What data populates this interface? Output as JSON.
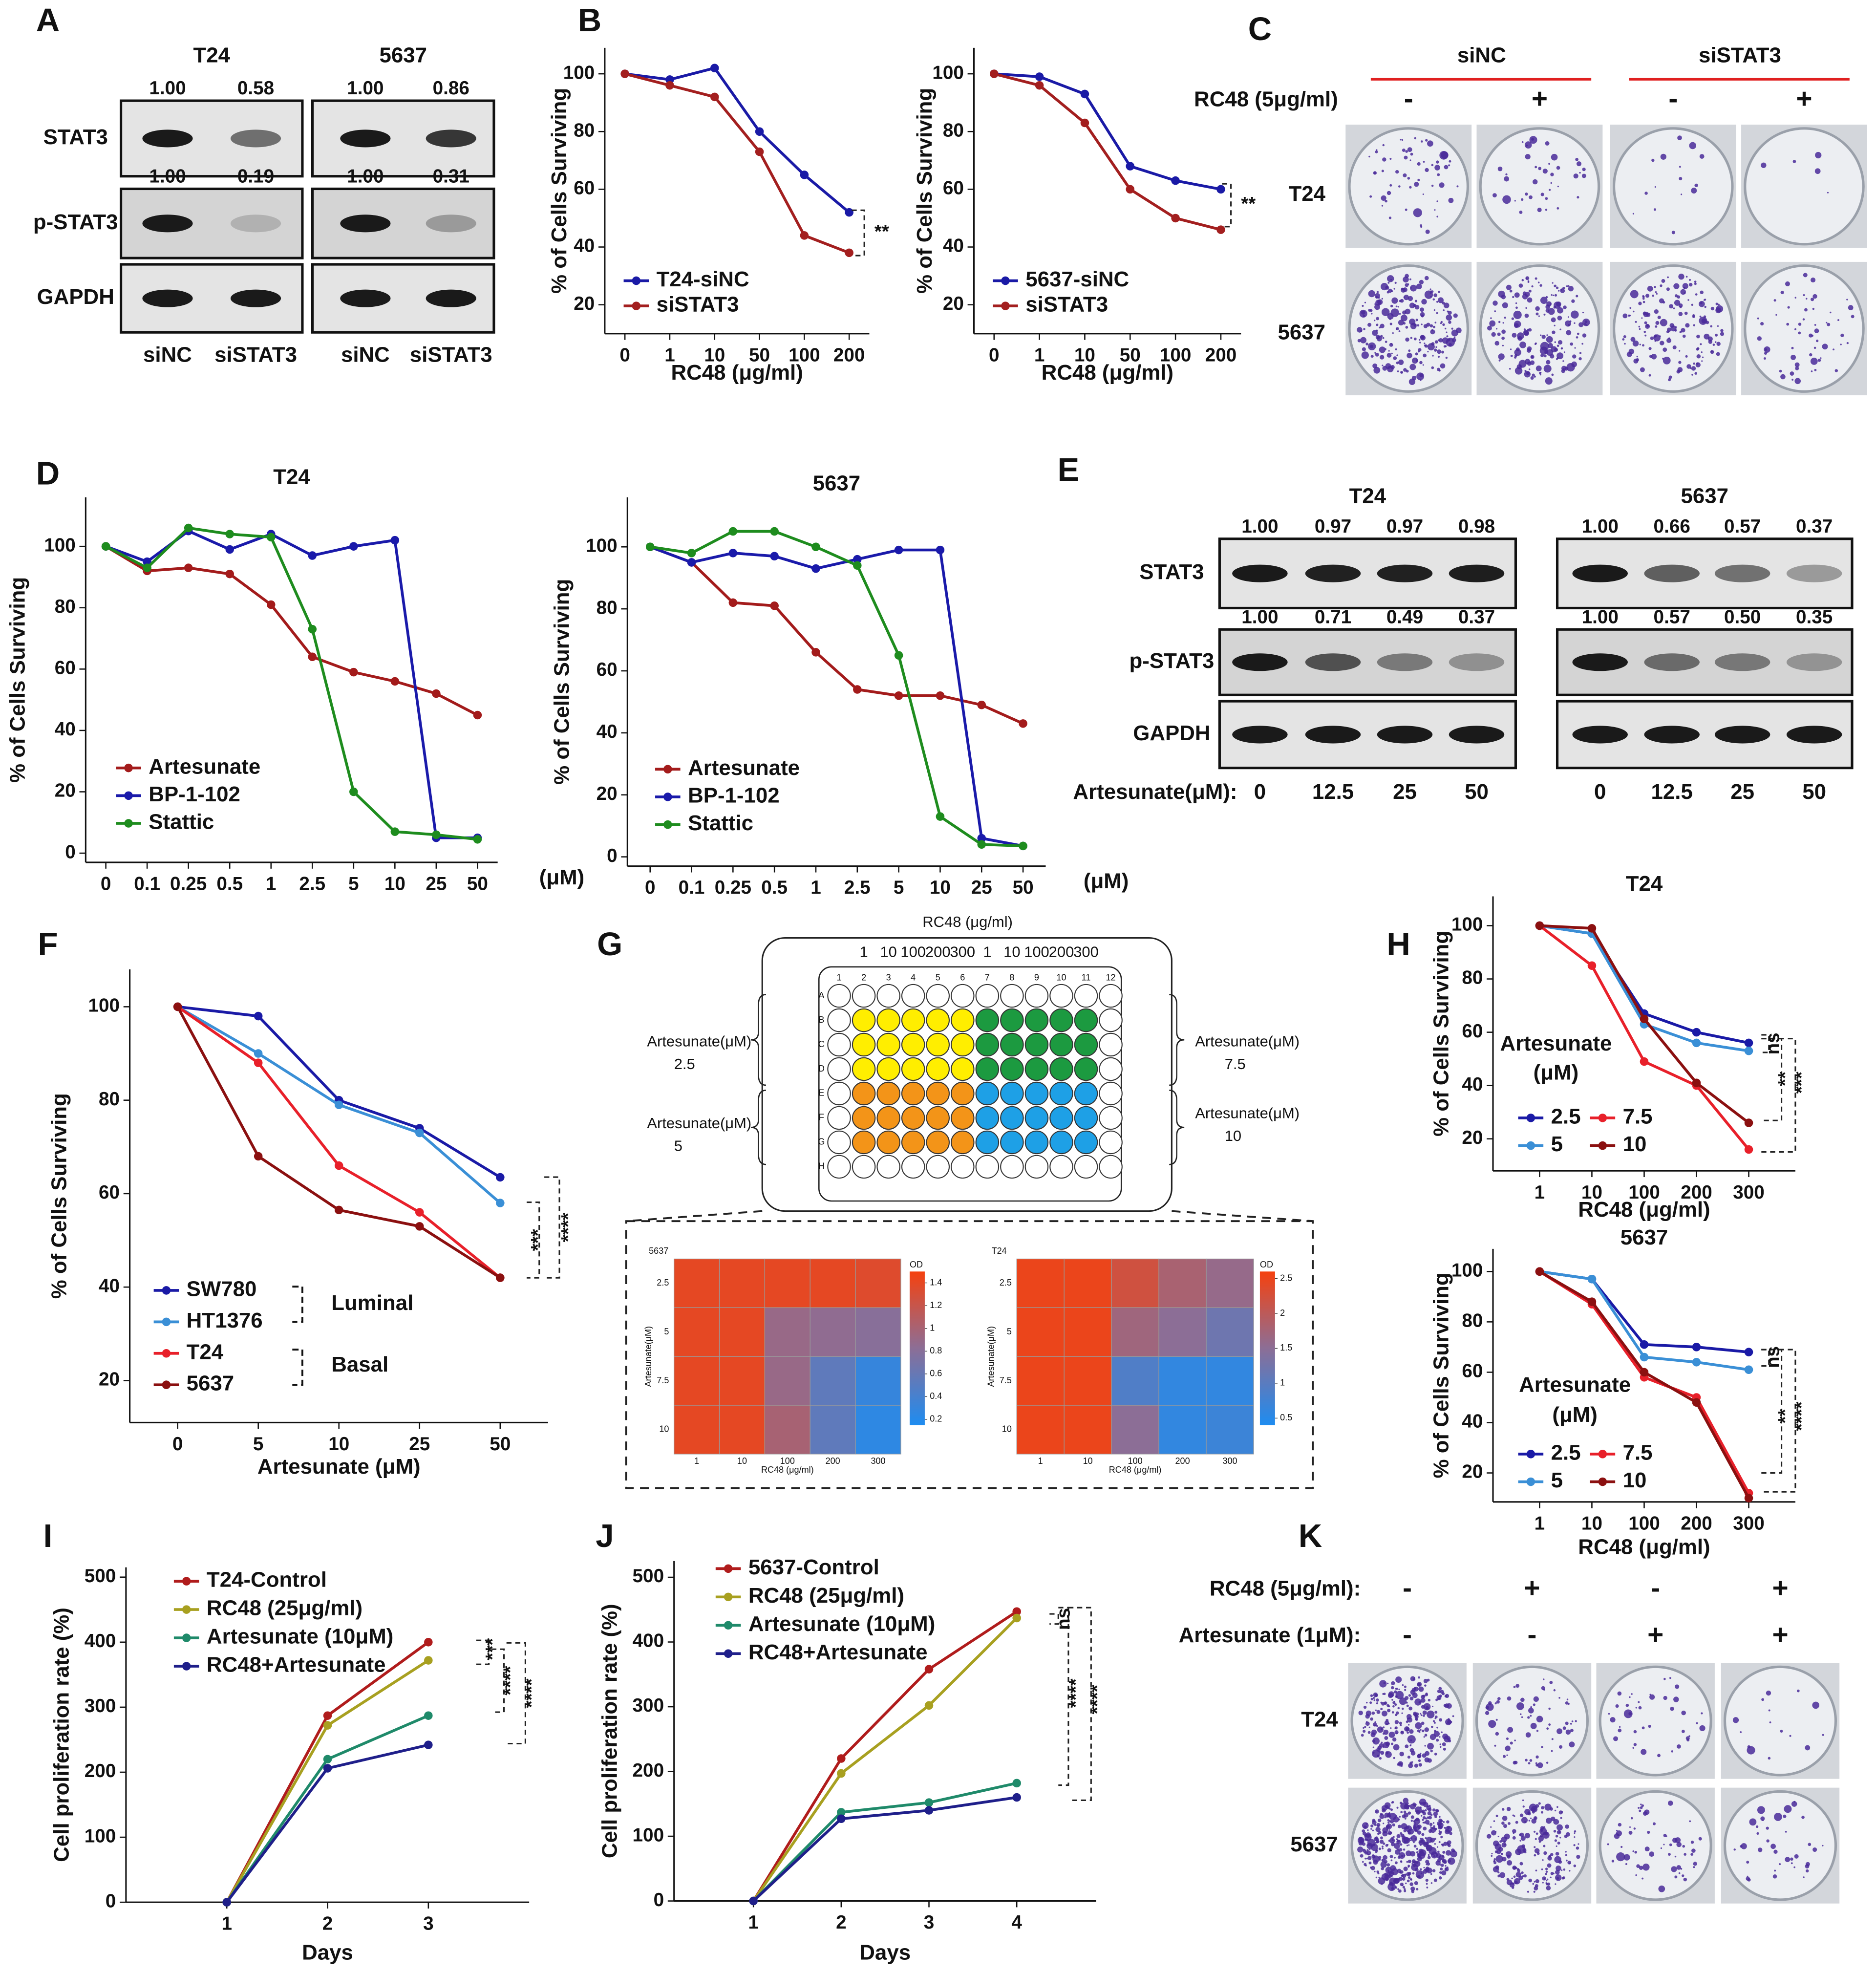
{
  "panel_labels": [
    "A",
    "B",
    "C",
    "D",
    "E",
    "F",
    "G",
    "H",
    "I",
    "J",
    "K"
  ],
  "blot_a": {
    "row_names": [
      "STAT3",
      "p-STAT3",
      "GAPDH"
    ],
    "groups": [
      {
        "title": "T24",
        "lanes": [
          "siNC",
          "siSTAT3"
        ],
        "quant": [
          [
            1,
            0.58
          ],
          [
            1,
            0.19
          ]
        ],
        "quant_labels": [
          [
            "1.00",
            "0.58"
          ],
          [
            "1.00",
            "0.19"
          ]
        ]
      },
      {
        "title": "5637",
        "lanes": [
          "siNC",
          "siSTAT3"
        ],
        "quant": [
          [
            1,
            0.86
          ],
          [
            1,
            0.31
          ]
        ],
        "quant_labels": [
          [
            "1.00",
            "0.86"
          ],
          [
            "1.00",
            "0.31"
          ]
        ]
      }
    ]
  },
  "blot_e": {
    "row_names": [
      "STAT3",
      "p-STAT3",
      "GAPDH"
    ],
    "lane_title": "Artesunate(μM):",
    "groups": [
      {
        "title": "T24",
        "lanes": [
          "0",
          "12.5",
          "25",
          "50"
        ],
        "quant": [
          [
            1,
            0.97,
            0.97,
            0.98
          ],
          [
            1,
            0.71,
            0.49,
            0.37
          ]
        ],
        "quant_labels": [
          [
            "1.00",
            "0.97",
            "0.97",
            "0.98"
          ],
          [
            "1.00",
            "0.71",
            "0.49",
            "0.37"
          ]
        ]
      },
      {
        "title": "5637",
        "lanes": [
          "0",
          "12.5",
          "25",
          "50"
        ],
        "quant": [
          [
            1,
            0.66,
            0.57,
            0.37
          ],
          [
            1,
            0.57,
            0.5,
            0.35
          ]
        ],
        "quant_labels": [
          [
            "1.00",
            "0.66",
            "0.57",
            "0.37"
          ],
          [
            "1.00",
            "0.57",
            "0.50",
            "0.35"
          ]
        ]
      }
    ]
  },
  "colony_c": {
    "conditions": [
      "siNC",
      "siSTAT3"
    ],
    "treatment": "RC48 (5μg/ml)",
    "signs": [
      "-",
      "+",
      "-",
      "+"
    ],
    "rows": [
      "T24",
      "5637"
    ]
  },
  "colony_k": {
    "treatments": [
      {
        "name": "RC48 (5μg/ml):",
        "signs": [
          "-",
          "+",
          "-",
          "+"
        ]
      },
      {
        "name": "Artesunate (1μM):",
        "signs": [
          "-",
          "-",
          "+",
          "+"
        ]
      }
    ],
    "rows": [
      "T24",
      "5637"
    ]
  },
  "plate": {
    "title": "RC48 (μg/ml)",
    "doses": [
      "1",
      "10",
      "100",
      "200",
      "300",
      "1",
      "10",
      "100",
      "200",
      "300"
    ],
    "columns": [
      "1",
      "2",
      "3",
      "4",
      "5",
      "6",
      "7",
      "8",
      "9",
      "10",
      "11",
      "12"
    ],
    "rows": [
      "A",
      "B",
      "C",
      "D",
      "E",
      "F",
      "G",
      "H"
    ],
    "groups": [
      {
        "label": "Artesunate(μM)",
        "value": "2.5",
        "color": "#ffee00"
      },
      {
        "label": "Artesunate(μM)",
        "value": "5",
        "color": "#f39418"
      },
      {
        "label": "Artesunate(μM)",
        "value": "7.5",
        "color": "#1c9a40"
      },
      {
        "label": "Artesunate(μM)",
        "value": "10",
        "color": "#1ea0e6"
      }
    ]
  },
  "chart_data": [
    {
      "type": "line",
      "xlabel": "RC48 (μg/ml)",
      "ylabel": "% of Cells Surviving",
      "categories": [
        "0",
        "1",
        "10",
        "50",
        "100",
        "200"
      ],
      "ylim": [
        10,
        109
      ],
      "yticks": [
        20,
        40,
        60,
        80,
        100
      ],
      "annotations": [
        "**"
      ],
      "series": [
        {
          "name": "T24-siNC",
          "color": "#1a1aa6",
          "values": [
            100,
            98,
            102,
            80,
            65,
            52
          ]
        },
        {
          "name": "siSTAT3",
          "color": "#a31f1f",
          "values": [
            100,
            96,
            92,
            73,
            44,
            38
          ]
        }
      ]
    },
    {
      "type": "line",
      "xlabel": "RC48 (μg/ml)",
      "ylabel": "% of Cells Surviving",
      "categories": [
        "0",
        "1",
        "10",
        "50",
        "100",
        "200"
      ],
      "ylim": [
        10,
        109
      ],
      "yticks": [
        20,
        40,
        60,
        80,
        100
      ],
      "annotations": [
        "**"
      ],
      "series": [
        {
          "name": "5637-siNC",
          "color": "#1a1aa6",
          "values": [
            100,
            99,
            93,
            68,
            63,
            60
          ]
        },
        {
          "name": "siSTAT3",
          "color": "#a31f1f",
          "values": [
            100,
            96,
            83,
            60,
            50,
            46
          ]
        }
      ]
    },
    {
      "type": "line",
      "title": "T24",
      "xlabel": "(μM)",
      "ylabel": "% of Cells Surviving",
      "categories": [
        "0",
        "0.1",
        "0.25",
        "0.5",
        "1",
        "2.5",
        "5",
        "10",
        "25",
        "50"
      ],
      "ylim": [
        -3,
        116
      ],
      "yticks": [
        0,
        20,
        40,
        60,
        80,
        100
      ],
      "series": [
        {
          "name": "Artesunate",
          "color": "#a31b1b",
          "values": [
            100,
            92,
            93,
            91,
            81,
            64,
            59,
            56,
            52,
            45
          ]
        },
        {
          "name": "BP-1-102",
          "color": "#1a1aaa",
          "values": [
            100,
            95,
            105,
            99,
            104,
            97,
            100,
            102,
            5,
            5
          ]
        },
        {
          "name": "Stattic",
          "color": "#1e8c1e",
          "values": [
            100,
            93,
            106,
            104,
            103,
            73,
            20,
            7,
            6,
            4.5
          ]
        }
      ]
    },
    {
      "type": "line",
      "title": "5637",
      "xlabel": "(μM)",
      "ylabel": "% of Cells Surviving",
      "categories": [
        "0",
        "0.1",
        "0.25",
        "0.5",
        "1",
        "2.5",
        "5",
        "10",
        "25",
        "50"
      ],
      "ylim": [
        -3,
        116
      ],
      "yticks": [
        0,
        20,
        40,
        60,
        80,
        100
      ],
      "series": [
        {
          "name": "Artesunate",
          "color": "#a31b1b",
          "values": [
            100,
            95,
            82,
            81,
            66,
            54,
            52,
            52,
            49,
            43
          ]
        },
        {
          "name": "BP-1-102",
          "color": "#1a1aaa",
          "values": [
            100,
            95,
            98,
            97,
            93,
            96,
            99,
            99,
            6,
            3.5
          ]
        },
        {
          "name": "Stattic",
          "color": "#1e8c1e",
          "values": [
            100,
            98,
            105,
            105,
            100,
            94,
            65,
            13,
            4,
            3.5
          ]
        }
      ]
    },
    {
      "type": "line",
      "xlabel": "Artesunate (μM)",
      "ylabel": "% of Cells Surviving",
      "categories": [
        "0",
        "5",
        "10",
        "25",
        "50"
      ],
      "ylim": [
        11,
        108
      ],
      "yticks": [
        20,
        40,
        60,
        80,
        100
      ],
      "groups": [
        "Luminal",
        "Basal"
      ],
      "annotations": [
        "***",
        "****"
      ],
      "series": [
        {
          "name": "SW780",
          "color": "#1a1aa6",
          "values": [
            100,
            98,
            80,
            74,
            63.5
          ]
        },
        {
          "name": "HT1376",
          "color": "#3a8fd6",
          "values": [
            100,
            90,
            79,
            73,
            58
          ]
        },
        {
          "name": "T24",
          "color": "#e8202a",
          "values": [
            100,
            88,
            66,
            56,
            42
          ]
        },
        {
          "name": "5637",
          "color": "#8b1010",
          "values": [
            100,
            68,
            56.5,
            53,
            42
          ]
        }
      ]
    },
    {
      "type": "line",
      "title": "T24",
      "xlabel": "RC48 (μg/ml)",
      "ylabel": "% of Cells Surviving",
      "categories": [
        "1",
        "10",
        "100",
        "200",
        "300"
      ],
      "ylim": [
        8,
        111
      ],
      "yticks": [
        20,
        40,
        60,
        80,
        100
      ],
      "legend_title": [
        "Artesunate",
        "(μM)"
      ],
      "annotations": [
        "ns",
        "**",
        "***"
      ],
      "series": [
        {
          "name": "2.5",
          "color": "#1a1aa6",
          "values": [
            100,
            97,
            67,
            60,
            56
          ]
        },
        {
          "name": "5",
          "color": "#3a8fd6",
          "values": [
            100,
            97,
            63,
            56,
            53
          ]
        },
        {
          "name": "7.5",
          "color": "#e8202a",
          "values": [
            100,
            85,
            49,
            40,
            16
          ]
        },
        {
          "name": "10",
          "color": "#8b1010",
          "values": [
            100,
            99,
            65,
            41,
            26
          ]
        }
      ]
    },
    {
      "type": "line",
      "title": "5637",
      "xlabel": "RC48 (μg/ml)",
      "ylabel": "% of Cells Surviving",
      "categories": [
        "1",
        "10",
        "100",
        "200",
        "300"
      ],
      "ylim": [
        8.5,
        109
      ],
      "yticks": [
        20,
        40,
        60,
        80,
        100
      ],
      "legend_title": [
        "Artesunate",
        "(μM)"
      ],
      "annotations": [
        "ns",
        "**",
        "****"
      ],
      "series": [
        {
          "name": "2.5",
          "color": "#1a1aa6",
          "values": [
            100,
            97,
            71,
            70,
            68
          ]
        },
        {
          "name": "5",
          "color": "#3a8fd6",
          "values": [
            100,
            97,
            66,
            64,
            61
          ]
        },
        {
          "name": "7.5",
          "color": "#e8202a",
          "values": [
            100,
            87,
            58,
            50,
            12
          ]
        },
        {
          "name": "10",
          "color": "#8b1010",
          "values": [
            100,
            88,
            60,
            48,
            10
          ]
        }
      ]
    },
    {
      "type": "line",
      "xlabel": "Days",
      "ylabel": "Cell proliferation rate (%)",
      "categories": [
        "1",
        "2",
        "3"
      ],
      "ylim": [
        0,
        515
      ],
      "yticks": [
        0,
        100,
        200,
        300,
        400,
        500
      ],
      "annotations": [
        "***",
        "****",
        "****"
      ],
      "series": [
        {
          "name": "T24-Control",
          "color": "#b01c1c",
          "values": [
            0,
            287,
            400
          ]
        },
        {
          "name": "RC48 (25μg/ml)",
          "color": "#a8a020",
          "values": [
            0,
            272,
            372
          ]
        },
        {
          "name": "Artesunate (10μM)",
          "color": "#1f8a6a",
          "values": [
            0,
            220,
            287
          ]
        },
        {
          "name": "RC48+Artesunate",
          "color": "#1f1f8a",
          "values": [
            0,
            206,
            242
          ]
        }
      ]
    },
    {
      "type": "line",
      "xlabel": "Days",
      "ylabel": "Cell proliferation rate (%)",
      "categories": [
        "1",
        "2",
        "3",
        "4"
      ],
      "ylim": [
        0,
        525
      ],
      "yticks": [
        0,
        100,
        200,
        300,
        400,
        500
      ],
      "annotations": [
        "ns",
        "****",
        "****"
      ],
      "series": [
        {
          "name": "5637-Control",
          "color": "#b01c1c",
          "values": [
            0,
            220,
            358,
            447
          ]
        },
        {
          "name": "RC48 (25μg/ml)",
          "color": "#a8a020",
          "values": [
            0,
            197,
            302,
            437
          ]
        },
        {
          "name": "Artesunate (10μM)",
          "color": "#1f8a6a",
          "values": [
            0,
            137,
            152,
            182
          ]
        },
        {
          "name": "RC48+Artesunate",
          "color": "#1f1f8a",
          "values": [
            0,
            127,
            140,
            160
          ]
        }
      ]
    },
    {
      "type": "heatmap",
      "title": "5637",
      "xlabel": "RC48 (μg/ml)",
      "ylabel": "Artesunate(μM)",
      "x": [
        "1",
        "10",
        "100",
        "200",
        "300"
      ],
      "y": [
        "2.5",
        "5",
        "7.5",
        "10"
      ],
      "zlim": [
        0.15,
        1.5
      ],
      "zticks": [
        0.2,
        0.4,
        0.6,
        0.8,
        1,
        1.2,
        1.4
      ],
      "colorbar_title": "OD",
      "values": [
        [
          1.4,
          1.4,
          1.4,
          1.4,
          1.35
        ],
        [
          1.4,
          1.4,
          0.9,
          0.85,
          0.8
        ],
        [
          1.4,
          1.4,
          0.9,
          0.55,
          0.3
        ],
        [
          1.4,
          1.4,
          1.0,
          0.55,
          0.25
        ]
      ]
    },
    {
      "type": "heatmap",
      "title": "T24",
      "xlabel": "RC48 (μg/ml)",
      "ylabel": "Artesunate(μM)",
      "x": [
        "1",
        "10",
        "100",
        "200",
        "300"
      ],
      "y": [
        "2.5",
        "5",
        "7.5",
        "10"
      ],
      "zlim": [
        0.4,
        2.6
      ],
      "zticks": [
        0.5,
        1,
        1.5,
        2,
        2.5
      ],
      "colorbar_title": "OD",
      "values": [
        [
          2.5,
          2.5,
          2.2,
          1.8,
          1.6
        ],
        [
          2.5,
          2.5,
          1.7,
          1.5,
          1.2
        ],
        [
          2.5,
          2.5,
          0.9,
          0.6,
          0.6
        ],
        [
          2.5,
          2.5,
          1.5,
          0.6,
          0.7
        ]
      ]
    }
  ]
}
